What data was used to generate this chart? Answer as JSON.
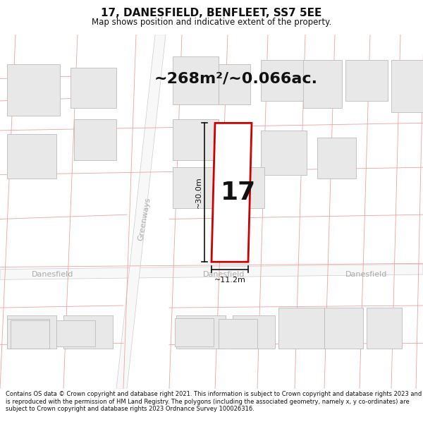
{
  "title": "17, DANESFIELD, BENFLEET, SS7 5EE",
  "subtitle": "Map shows position and indicative extent of the property.",
  "area_text": "~268m²/~0.066ac.",
  "number_label": "17",
  "dim_width": "~11.2m",
  "dim_height": "~30.0m",
  "footer": "Contains OS data © Crown copyright and database right 2021. This information is subject to Crown copyright and database rights 2023 and is reproduced with the permission of HM Land Registry. The polygons (including the associated geometry, namely x, y co-ordinates) are subject to Crown copyright and database rights 2023 Ordnance Survey 100026316.",
  "bg_color": "#ffffff",
  "map_bg": "#ffffff",
  "property_fill": "#ffffff",
  "property_edge": "#cc0000",
  "road_color": "#f0f0f0",
  "road_edge": "#bbbbbb",
  "building_fill": "#e8e8e8",
  "building_edge": "#bbbbbb",
  "lot_line_color": "#f0a0a0",
  "street_label_color": "#aaaaaa",
  "dim_color": "#111111",
  "text_color": "#111111",
  "title_fontsize": 11,
  "subtitle_fontsize": 8.5,
  "area_fontsize": 16,
  "number_fontsize": 26,
  "street_fontsize": 8,
  "dim_fontsize": 8,
  "footer_fontsize": 6.0
}
